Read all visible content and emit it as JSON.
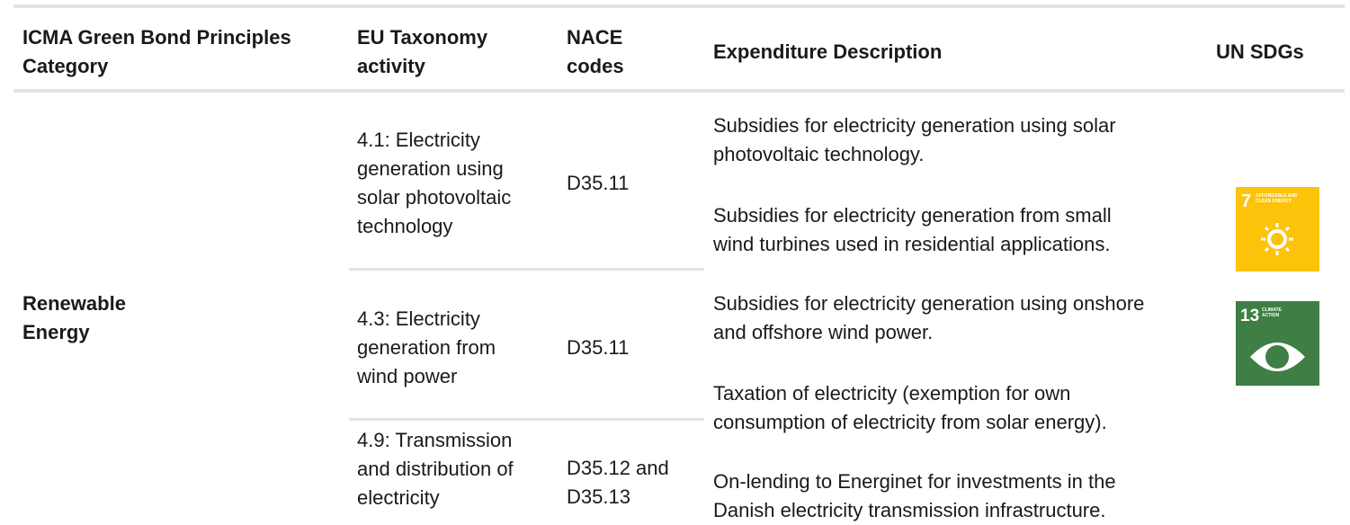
{
  "table": {
    "headers": [
      "ICMA Green Bond Principles\nCategory",
      "EU Taxonomy\nactivity",
      "NACE\ncodes",
      "Expenditure Description",
      "UN SDGs"
    ],
    "category": "Renewable\nEnergy",
    "rows": [
      [
        "4.1: Electricity\ngeneration using\nsolar photovoltaic\ntechnology",
        "D35.11"
      ],
      [
        "4.3: Electricity\ngeneration from\nwind power",
        "D35.11"
      ],
      [
        "4.9: Transmission\nand distribution of\nelectricity",
        "D35.12 and\nD35.13"
      ]
    ],
    "descriptions": [
      "Subsidies for electricity generation using solar\nphotovoltaic technology.",
      "Subsidies for electricity generation from small\nwind turbines used in residential applications.",
      "Subsidies for electricity generation using onshore\nand offshore wind power.",
      "Taxation of electricity (exemption for own\nconsumption of electricity from solar energy).",
      "On-lending to Energinet for investments in the\nDanish electricity transmission infrastructure."
    ],
    "sdgs": [
      {
        "number": "7",
        "label": "AFFORDABLE AND\nCLEAN ENERGY"
      },
      {
        "number": "13",
        "label": "CLIMATE\nACTION"
      }
    ]
  }
}
